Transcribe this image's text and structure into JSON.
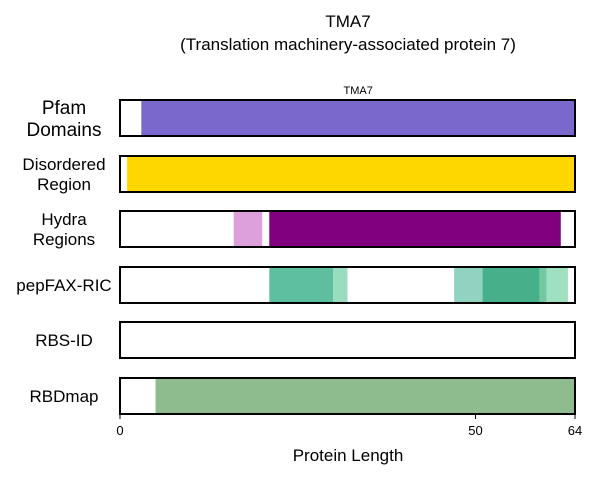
{
  "chart_data": {
    "type": "bar",
    "title_line1": "TMA7",
    "title_line2": "(Translation machinery-associated protein 7)",
    "xlabel": "Protein Length",
    "xlim": [
      0,
      64
    ],
    "xticks": [
      0,
      50,
      64
    ],
    "tracks": [
      {
        "label_lines": [
          "Pfam",
          "Domains"
        ],
        "segments": [
          {
            "start": 3,
            "end": 64,
            "color": "#7b68cc",
            "label": "TMA7"
          }
        ]
      },
      {
        "label_lines": [
          "Disordered",
          "Region"
        ],
        "segments": [
          {
            "start": 1,
            "end": 64,
            "color": "#ffd700"
          }
        ]
      },
      {
        "label_lines": [
          "Hydra",
          "Regions"
        ],
        "segments": [
          {
            "start": 16,
            "end": 20,
            "color": "#dda0dd"
          },
          {
            "start": 21,
            "end": 62,
            "color": "#800080"
          }
        ]
      },
      {
        "label_lines": [
          "pepFAX-RIC"
        ],
        "segments": [
          {
            "start": 21,
            "end": 30,
            "color": "#5dbf9f"
          },
          {
            "start": 30,
            "end": 32,
            "color": "#9adcc0"
          },
          {
            "start": 47,
            "end": 51,
            "color": "#8fd3c0"
          },
          {
            "start": 51,
            "end": 59,
            "color": "#46b08b"
          },
          {
            "start": 59,
            "end": 60,
            "color": "#73c8a3"
          },
          {
            "start": 60,
            "end": 63,
            "color": "#9fe0c0"
          }
        ]
      },
      {
        "label_lines": [
          "RBS-ID"
        ],
        "segments": []
      },
      {
        "label_lines": [
          "RBDmap"
        ],
        "segments": [
          {
            "start": 5,
            "end": 64,
            "color": "#8fbc8f"
          }
        ]
      }
    ]
  }
}
